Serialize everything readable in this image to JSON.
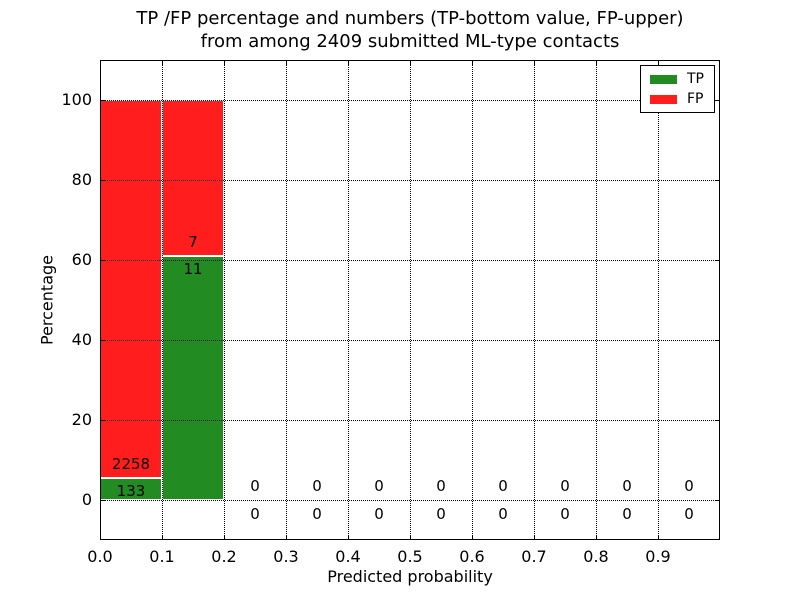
{
  "chart_data": {
    "type": "bar",
    "stacked": true,
    "title_line1": "TP /FP percentage and numbers (TP-bottom value, FP-upper)",
    "title_line2": "from among 2409 submitted ML-type contacts",
    "xlabel": "Predicted probability",
    "ylabel": "Percentage",
    "total_submitted": 2409,
    "xlim": [
      0.0,
      1.0
    ],
    "ylim": [
      -10,
      110
    ],
    "grid": "dotted, drawn above bars",
    "bin_width": 0.1,
    "xticks": [
      {
        "v": 0.0,
        "label": "0.0"
      },
      {
        "v": 0.1,
        "label": "0.1"
      },
      {
        "v": 0.2,
        "label": "0.2"
      },
      {
        "v": 0.3,
        "label": "0.3"
      },
      {
        "v": 0.4,
        "label": "0.4"
      },
      {
        "v": 0.5,
        "label": "0.5"
      },
      {
        "v": 0.6,
        "label": "0.6"
      },
      {
        "v": 0.7,
        "label": "0.7"
      },
      {
        "v": 0.8,
        "label": "0.8"
      },
      {
        "v": 0.9,
        "label": "0.9"
      }
    ],
    "yticks": [
      {
        "v": 0,
        "label": "0"
      },
      {
        "v": 20,
        "label": "20"
      },
      {
        "v": 40,
        "label": "40"
      },
      {
        "v": 60,
        "label": "60"
      },
      {
        "v": 80,
        "label": "80"
      },
      {
        "v": 100,
        "label": "100"
      }
    ],
    "bins": [
      {
        "range": [
          0.0,
          0.1
        ],
        "tp_count": 133,
        "fp_count": 2258,
        "tp_pct": 5.56,
        "fp_pct": 94.44
      },
      {
        "range": [
          0.1,
          0.2
        ],
        "tp_count": 11,
        "fp_count": 7,
        "tp_pct": 61.11,
        "fp_pct": 38.89
      },
      {
        "range": [
          0.2,
          0.3
        ],
        "tp_count": 0,
        "fp_count": 0,
        "tp_pct": 0,
        "fp_pct": 0
      },
      {
        "range": [
          0.3,
          0.4
        ],
        "tp_count": 0,
        "fp_count": 0,
        "tp_pct": 0,
        "fp_pct": 0
      },
      {
        "range": [
          0.4,
          0.5
        ],
        "tp_count": 0,
        "fp_count": 0,
        "tp_pct": 0,
        "fp_pct": 0
      },
      {
        "range": [
          0.5,
          0.6
        ],
        "tp_count": 0,
        "fp_count": 0,
        "tp_pct": 0,
        "fp_pct": 0
      },
      {
        "range": [
          0.6,
          0.7
        ],
        "tp_count": 0,
        "fp_count": 0,
        "tp_pct": 0,
        "fp_pct": 0
      },
      {
        "range": [
          0.7,
          0.8
        ],
        "tp_count": 0,
        "fp_count": 0,
        "tp_pct": 0,
        "fp_pct": 0
      },
      {
        "range": [
          0.8,
          0.9
        ],
        "tp_count": 0,
        "fp_count": 0,
        "tp_pct": 0,
        "fp_pct": 0
      },
      {
        "range": [
          0.9,
          1.0
        ],
        "tp_count": 0,
        "fp_count": 0,
        "tp_pct": 0,
        "fp_pct": 0
      }
    ],
    "legend": {
      "position": "upper right",
      "items": [
        {
          "label": "TP",
          "color": "#228B22"
        },
        {
          "label": "FP",
          "color": "#FF1D1D"
        }
      ]
    },
    "colors": {
      "tp": "#228B22",
      "fp": "#FF1D1D",
      "grid": "#000000",
      "background": "#FFFFFF",
      "text": "#000000"
    }
  }
}
